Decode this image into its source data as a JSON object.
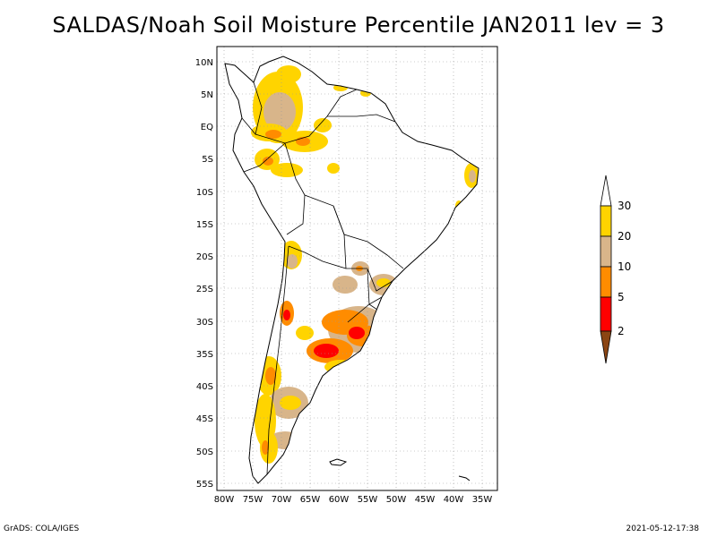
{
  "title": "SALDAS/Noah Soil Moisture Percentile JAN2011 lev = 3",
  "map": {
    "lat_ticks": [
      "10N",
      "5N",
      "EQ",
      "5S",
      "10S",
      "15S",
      "20S",
      "25S",
      "30S",
      "35S",
      "40S",
      "45S",
      "50S",
      "55S"
    ],
    "lon_ticks": [
      "80W",
      "75W",
      "70W",
      "65W",
      "60W",
      "55W",
      "50W",
      "45W",
      "40W",
      "35W"
    ]
  },
  "colorbar": {
    "labels": [
      "30",
      "20",
      "10",
      "5",
      "2"
    ],
    "colors": [
      "#ffffff",
      "#ffd400",
      "#d8b58a",
      "#ff8c00",
      "#ff0000",
      "#8b4513"
    ]
  },
  "footer": {
    "left": "GrADS: COLA/IGES",
    "right": "2021-05-12-17:38"
  }
}
